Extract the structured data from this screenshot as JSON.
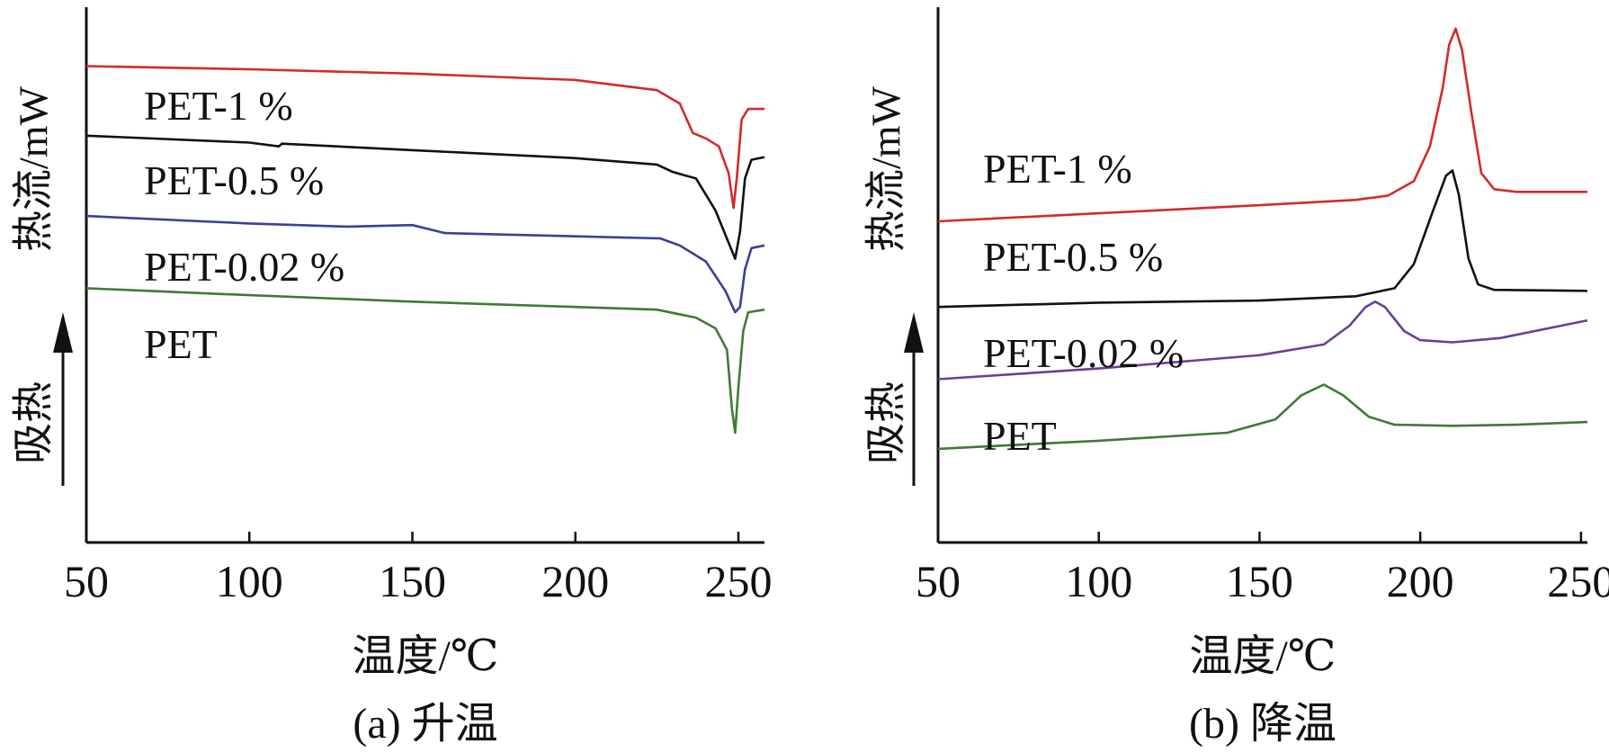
{
  "chart_data": [
    {
      "type": "line",
      "caption": "(a) 升温",
      "xlabel": "温度/℃",
      "ylabel": "热流/mW",
      "endo_label": "吸热",
      "xlim": [
        50,
        258
      ],
      "xticks": [
        50,
        100,
        150,
        200,
        250
      ],
      "ylim": [
        0,
        10
      ],
      "grid": false,
      "series": [
        {
          "name": "PET-1 %",
          "color": "#d42a2a",
          "points": [
            [
              50,
              8.9
            ],
            [
              100,
              8.84
            ],
            [
              150,
              8.76
            ],
            [
              200,
              8.64
            ],
            [
              225,
              8.45
            ],
            [
              232,
              8.2
            ],
            [
              236,
              7.65
            ],
            [
              240,
              7.55
            ],
            [
              244,
              7.4
            ],
            [
              247,
              6.9
            ],
            [
              248.5,
              6.25
            ],
            [
              249.5,
              6.8
            ],
            [
              251,
              7.9
            ],
            [
              253,
              8.1
            ],
            [
              258,
              8.1
            ]
          ]
        },
        {
          "name": "PET-0.5 %",
          "color": "#111111",
          "points": [
            [
              50,
              7.6
            ],
            [
              100,
              7.47
            ],
            [
              109,
              7.4
            ],
            [
              110,
              7.45
            ],
            [
              150,
              7.33
            ],
            [
              200,
              7.18
            ],
            [
              225,
              7.06
            ],
            [
              230,
              6.92
            ],
            [
              237,
              6.8
            ],
            [
              243,
              6.2
            ],
            [
              247,
              5.6
            ],
            [
              249,
              5.3
            ],
            [
              250.5,
              5.8
            ],
            [
              252,
              6.8
            ],
            [
              254,
              7.15
            ],
            [
              258,
              7.2
            ]
          ]
        },
        {
          "name": "PET-0.02 %",
          "color": "#3a3f9a",
          "points": [
            [
              50,
              6.1
            ],
            [
              100,
              5.96
            ],
            [
              130,
              5.9
            ],
            [
              150,
              5.93
            ],
            [
              160,
              5.78
            ],
            [
              200,
              5.72
            ],
            [
              226,
              5.68
            ],
            [
              232,
              5.55
            ],
            [
              240,
              5.25
            ],
            [
              246,
              4.7
            ],
            [
              249,
              4.3
            ],
            [
              250.5,
              4.4
            ],
            [
              252,
              5.1
            ],
            [
              254,
              5.5
            ],
            [
              258,
              5.55
            ]
          ]
        },
        {
          "name": "PET",
          "color": "#3f7a36",
          "points": [
            [
              50,
              4.75
            ],
            [
              100,
              4.62
            ],
            [
              150,
              4.5
            ],
            [
              200,
              4.4
            ],
            [
              225,
              4.35
            ],
            [
              237,
              4.2
            ],
            [
              243,
              4.0
            ],
            [
              246.5,
              3.6
            ],
            [
              248,
              2.5
            ],
            [
              249,
              2.05
            ],
            [
              250,
              2.9
            ],
            [
              251.5,
              3.95
            ],
            [
              253,
              4.3
            ],
            [
              258,
              4.35
            ]
          ]
        }
      ]
    },
    {
      "type": "line",
      "caption": "(b) 降温",
      "xlabel": "温度/℃",
      "ylabel": "热流/mW",
      "endo_label": "吸热",
      "xlim": [
        50,
        252
      ],
      "xticks": [
        50,
        100,
        150,
        200,
        250
      ],
      "ylim": [
        0,
        10
      ],
      "grid": false,
      "series": [
        {
          "name": "PET-1 %",
          "color": "#d42a2a",
          "points": [
            [
              50,
              6.0
            ],
            [
              100,
              6.15
            ],
            [
              150,
              6.3
            ],
            [
              180,
              6.4
            ],
            [
              190,
              6.48
            ],
            [
              198,
              6.75
            ],
            [
              203,
              7.4
            ],
            [
              207,
              8.5
            ],
            [
              209,
              9.3
            ],
            [
              211,
              9.6
            ],
            [
              213,
              9.2
            ],
            [
              216,
              8.0
            ],
            [
              219,
              6.9
            ],
            [
              223,
              6.6
            ],
            [
              230,
              6.55
            ],
            [
              252,
              6.55
            ]
          ]
        },
        {
          "name": "PET-0.5 %",
          "color": "#111111",
          "points": [
            [
              50,
              4.4
            ],
            [
              100,
              4.48
            ],
            [
              150,
              4.52
            ],
            [
              180,
              4.6
            ],
            [
              192,
              4.75
            ],
            [
              198,
              5.2
            ],
            [
              204,
              6.2
            ],
            [
              208,
              6.85
            ],
            [
              210,
              6.95
            ],
            [
              212,
              6.5
            ],
            [
              215,
              5.3
            ],
            [
              218,
              4.82
            ],
            [
              223,
              4.72
            ],
            [
              252,
              4.7
            ]
          ]
        },
        {
          "name": "PET-0.02 %",
          "color": "#6a3f96",
          "points": [
            [
              50,
              3.05
            ],
            [
              100,
              3.25
            ],
            [
              150,
              3.5
            ],
            [
              170,
              3.7
            ],
            [
              178,
              4.05
            ],
            [
              183,
              4.4
            ],
            [
              186,
              4.5
            ],
            [
              189,
              4.4
            ],
            [
              195,
              3.95
            ],
            [
              200,
              3.78
            ],
            [
              210,
              3.74
            ],
            [
              225,
              3.82
            ],
            [
              252,
              4.15
            ]
          ]
        },
        {
          "name": "PET",
          "color": "#3f7a36",
          "points": [
            [
              50,
              1.75
            ],
            [
              100,
              1.9
            ],
            [
              140,
              2.05
            ],
            [
              155,
              2.3
            ],
            [
              163,
              2.75
            ],
            [
              170,
              2.95
            ],
            [
              176,
              2.75
            ],
            [
              184,
              2.35
            ],
            [
              192,
              2.2
            ],
            [
              210,
              2.18
            ],
            [
              230,
              2.2
            ],
            [
              252,
              2.25
            ]
          ]
        }
      ]
    }
  ]
}
